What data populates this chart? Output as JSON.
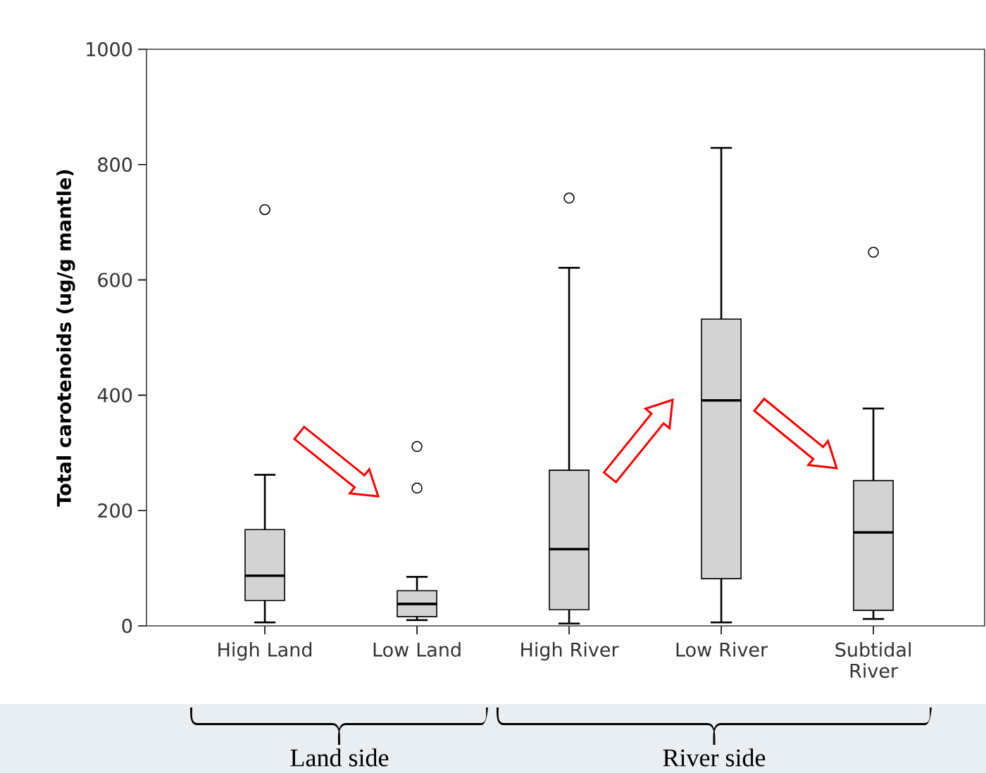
{
  "chart_data": {
    "type": "box",
    "ylabel": "Total carotenoids (ug/g mantle)",
    "categories": [
      "High Land",
      "Low Land",
      "High River",
      "Low River",
      "Subtidal River"
    ],
    "boxes": [
      {
        "low": 6,
        "q1": 44,
        "median": 87,
        "q3": 167,
        "high": 262,
        "outliers": [
          722
        ]
      },
      {
        "low": 10,
        "q1": 16,
        "median": 38,
        "q3": 61,
        "high": 85,
        "outliers": [
          311,
          239
        ]
      },
      {
        "low": 4,
        "q1": 28,
        "median": 133,
        "q3": 270,
        "high": 621,
        "outliers": [
          742
        ]
      },
      {
        "low": 6,
        "q1": 82,
        "median": 391,
        "q3": 532,
        "high": 829
      },
      {
        "low": 12,
        "q1": 27,
        "median": 162,
        "q3": 252,
        "high": 377,
        "outliers": [
          648
        ]
      }
    ],
    "color": "#d3d3d3",
    "ylim": [
      0,
      1000
    ],
    "yticks": [
      0,
      200,
      400,
      600,
      800,
      1000
    ],
    "annotations": [
      "Land side",
      "River side"
    ]
  }
}
